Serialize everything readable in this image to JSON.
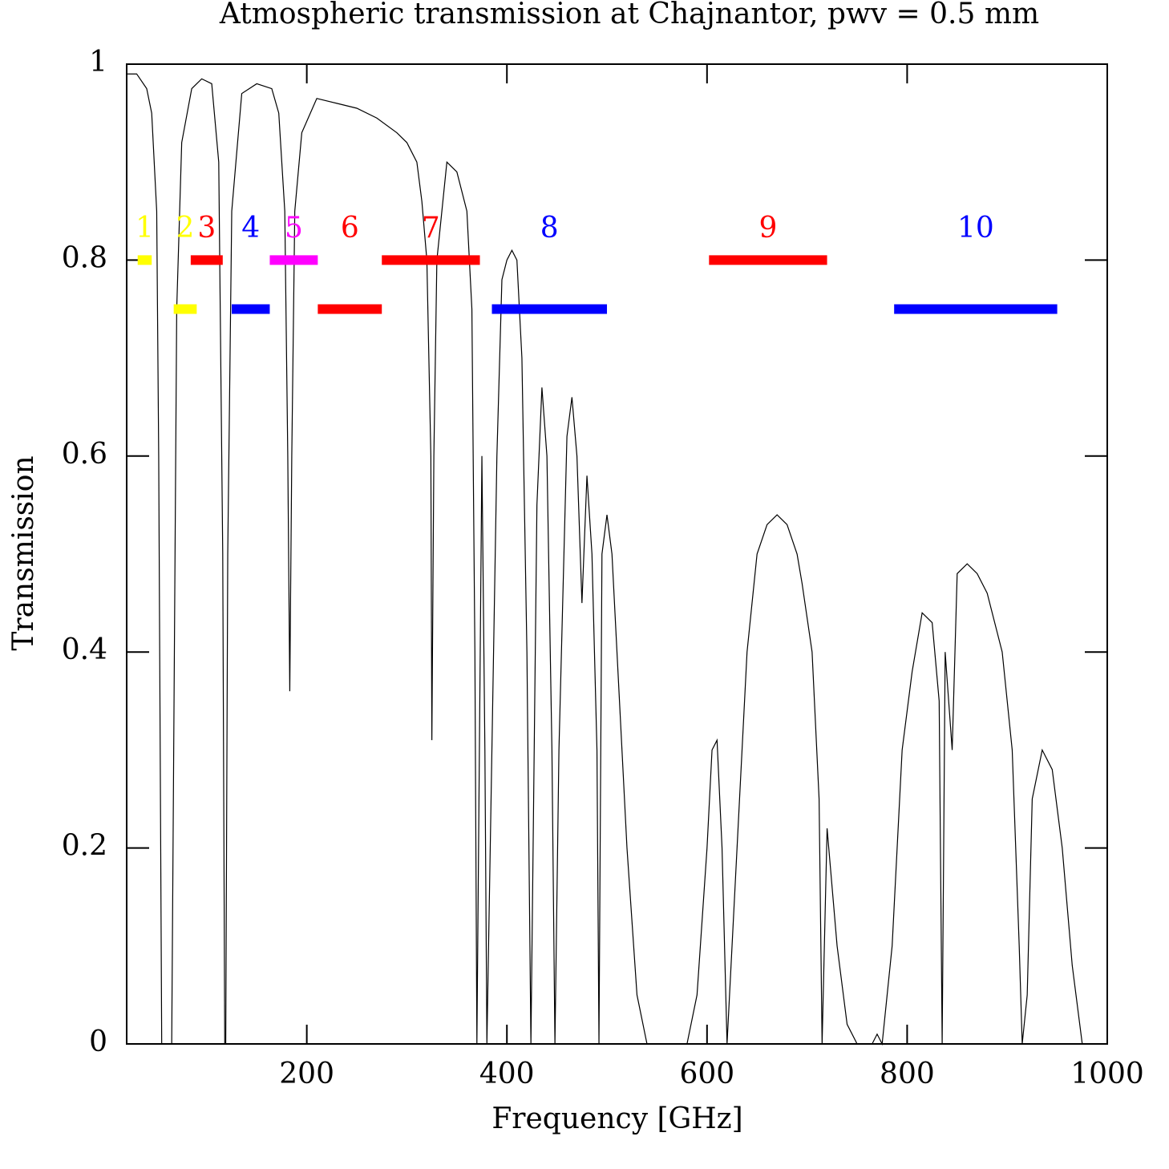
{
  "chart_data": {
    "type": "line",
    "title": "Atmospheric transmission at Chajnantor, pwv = 0.5 mm",
    "xlabel": "Frequency [GHz]",
    "ylabel": "Transmission",
    "color": "#000000",
    "xlim": [
      20,
      1000
    ],
    "ylim": [
      0,
      1
    ],
    "xticks": [
      200,
      400,
      600,
      800,
      1000
    ],
    "yticks": [
      0,
      0.2,
      0.4,
      0.6,
      0.8,
      1
    ],
    "x": [
      20,
      30,
      40,
      45,
      50,
      52,
      54,
      55,
      60,
      65,
      67,
      70,
      75,
      85,
      95,
      105,
      112,
      116,
      118,
      119,
      121,
      125,
      135,
      150,
      165,
      172,
      178,
      181,
      183,
      185,
      188,
      195,
      210,
      230,
      250,
      270,
      290,
      300,
      310,
      315,
      320,
      324,
      325,
      327,
      330,
      340,
      350,
      360,
      365,
      368,
      370,
      375,
      378,
      380,
      385,
      390,
      395,
      400,
      405,
      410,
      415,
      420,
      424,
      430,
      435,
      440,
      445,
      448,
      452,
      460,
      465,
      470,
      475,
      480,
      485,
      490,
      492,
      495,
      500,
      505,
      510,
      520,
      530,
      540,
      580,
      590,
      600,
      605,
      610,
      615,
      620,
      625,
      640,
      650,
      660,
      670,
      680,
      690,
      695,
      705,
      712,
      715,
      720,
      730,
      740,
      750,
      765,
      770,
      775,
      785,
      795,
      805,
      815,
      825,
      832,
      835,
      838,
      845,
      850,
      860,
      870,
      880,
      890,
      895,
      905,
      912,
      915,
      920,
      925,
      935,
      945,
      955,
      965,
      975,
      1000
    ],
    "values": [
      0.99,
      0.99,
      0.975,
      0.95,
      0.85,
      0.6,
      0.2,
      0,
      0,
      0,
      0.3,
      0.75,
      0.92,
      0.975,
      0.985,
      0.98,
      0.9,
      0.5,
      0,
      0,
      0.5,
      0.85,
      0.97,
      0.98,
      0.975,
      0.95,
      0.85,
      0.6,
      0.36,
      0.6,
      0.85,
      0.93,
      0.965,
      0.96,
      0.955,
      0.945,
      0.93,
      0.92,
      0.9,
      0.86,
      0.8,
      0.6,
      0.31,
      0.6,
      0.8,
      0.9,
      0.89,
      0.85,
      0.75,
      0.4,
      0,
      0.6,
      0.3,
      0,
      0.3,
      0.6,
      0.78,
      0.8,
      0.81,
      0.8,
      0.7,
      0.4,
      0,
      0.55,
      0.67,
      0.6,
      0.3,
      0,
      0.3,
      0.62,
      0.66,
      0.6,
      0.45,
      0.58,
      0.5,
      0.3,
      0,
      0.5,
      0.54,
      0.5,
      0.4,
      0.2,
      0.05,
      0,
      0,
      0.05,
      0.2,
      0.3,
      0.31,
      0.2,
      0,
      0.1,
      0.4,
      0.5,
      0.53,
      0.54,
      0.53,
      0.5,
      0.47,
      0.4,
      0.25,
      0,
      0.22,
      0.1,
      0.02,
      0,
      0,
      0.01,
      0,
      0.1,
      0.3,
      0.38,
      0.44,
      0.43,
      0.35,
      0,
      0.4,
      0.3,
      0.48,
      0.49,
      0.48,
      0.46,
      0.42,
      0.4,
      0.3,
      0.1,
      0,
      0.05,
      0.25,
      0.3,
      0.28,
      0.2,
      0.08,
      0,
      0
    ],
    "bands": [
      {
        "label": "1",
        "color": "#ffff00",
        "range": [
          31,
          45
        ],
        "level": 0.8
      },
      {
        "label": "2",
        "color": "#ffff00",
        "range": [
          67,
          90
        ],
        "level": 0.75
      },
      {
        "label": "3",
        "color": "#ff0000",
        "range": [
          84,
          116
        ],
        "level": 0.8
      },
      {
        "label": "4",
        "color": "#0000ff",
        "range": [
          125,
          163
        ],
        "level": 0.75
      },
      {
        "label": "5",
        "color": "#ff00ff",
        "range": [
          163,
          211
        ],
        "level": 0.8
      },
      {
        "label": "6",
        "color": "#ff0000",
        "range": [
          211,
          275
        ],
        "level": 0.75
      },
      {
        "label": "7",
        "color": "#ff0000",
        "range": [
          275,
          373
        ],
        "level": 0.8
      },
      {
        "label": "8",
        "color": "#0000ff",
        "range": [
          385,
          500
        ],
        "level": 0.75
      },
      {
        "label": "9",
        "color": "#ff0000",
        "range": [
          602,
          720
        ],
        "level": 0.8
      },
      {
        "label": "10",
        "color": "#0000ff",
        "range": [
          787,
          950
        ],
        "level": 0.75
      }
    ]
  }
}
